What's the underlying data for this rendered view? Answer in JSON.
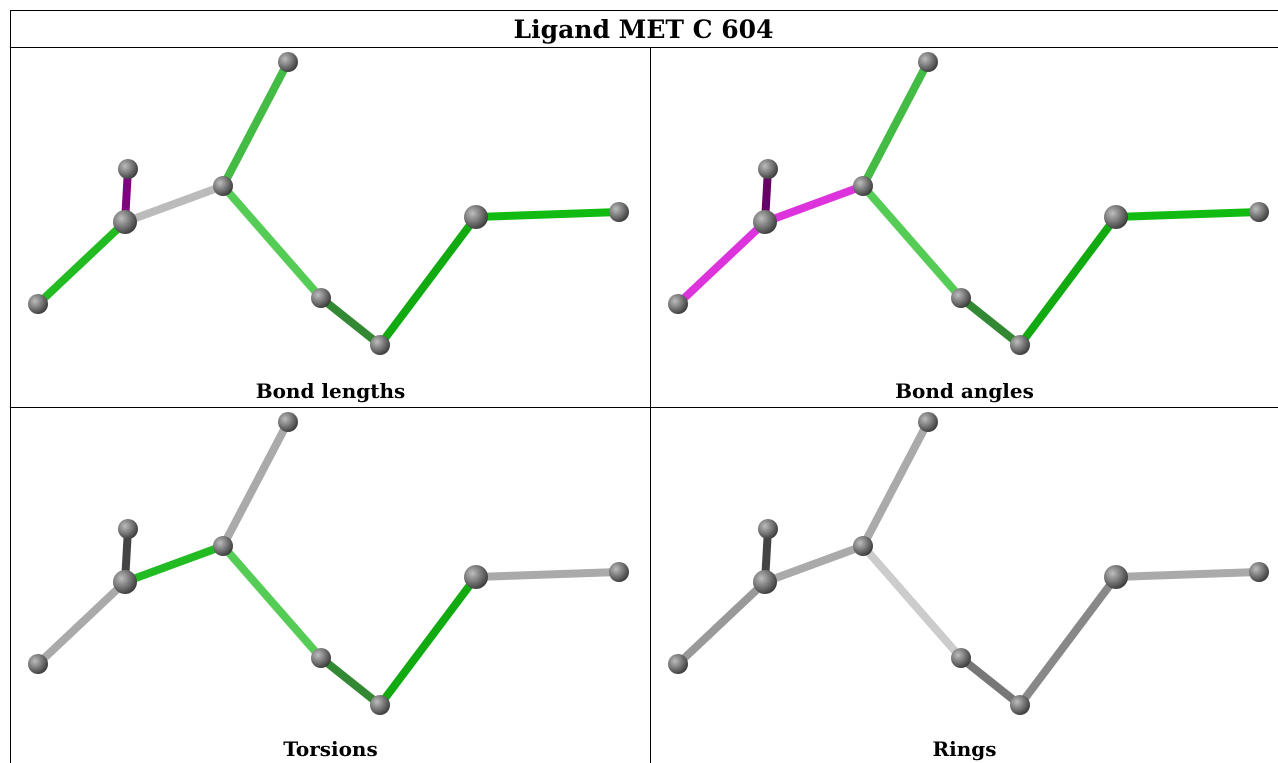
{
  "title": "Ligand MET C 604",
  "panels": [
    {
      "id": "bond-lengths",
      "caption": "Bond lengths",
      "bond_colors": [
        "#22bb22",
        "#800080",
        "#bbbbbb",
        "#44bb44",
        "#55cc55",
        "#338833",
        "#11aa11",
        "#11bb11"
      ]
    },
    {
      "id": "bond-angles",
      "caption": "Bond angles",
      "bond_colors": [
        "#dd33dd",
        "#660066",
        "#dd33dd",
        "#44bb44",
        "#55cc55",
        "#338833",
        "#11aa11",
        "#11bb11"
      ]
    },
    {
      "id": "torsions",
      "caption": "Torsions",
      "bond_colors": [
        "#aaaaaa",
        "#444444",
        "#22bb22",
        "#aaaaaa",
        "#55cc55",
        "#338833",
        "#11aa11",
        "#aaaaaa"
      ]
    },
    {
      "id": "rings",
      "caption": "Rings",
      "bond_colors": [
        "#999999",
        "#444444",
        "#aaaaaa",
        "#aaaaaa",
        "#cccccc",
        "#777777",
        "#888888",
        "#aaaaaa"
      ]
    }
  ]
}
